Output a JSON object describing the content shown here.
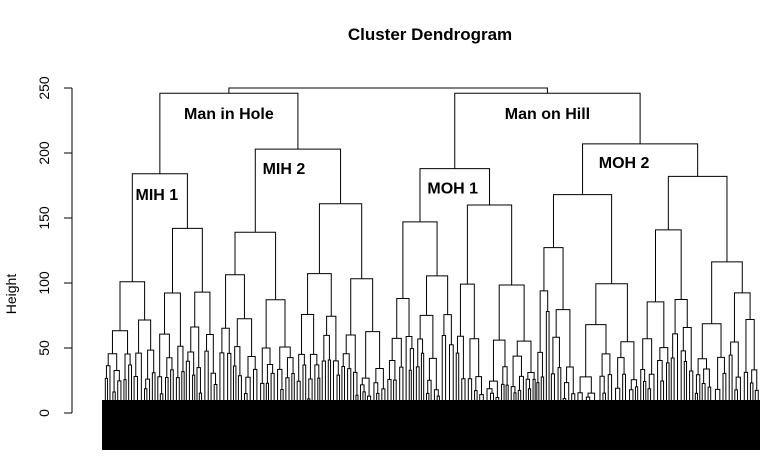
{
  "chart_data": {
    "type": "dendrogram",
    "title": "Cluster Dendrogram",
    "xlabel": "",
    "ylabel": "Height",
    "ylim": [
      0,
      260
    ],
    "yticks": [
      0,
      50,
      100,
      150,
      200,
      250
    ],
    "root": {
      "height": 250,
      "children": [
        "Man in Hole",
        "Man on Hill"
      ]
    },
    "clusters": [
      {
        "name": "Man in Hole",
        "height": 246,
        "children": [
          "MIH 1",
          "MIH 2"
        ]
      },
      {
        "name": "Man on Hill",
        "height": 246,
        "children": [
          "MOH 1",
          "MOH 2"
        ]
      },
      {
        "name": "MIH 1",
        "height": 184,
        "subclusters": [
          101,
          142
        ]
      },
      {
        "name": "MIH 2",
        "height": 203,
        "subclusters": [
          139,
          161
        ]
      },
      {
        "name": "MOH 1",
        "height": 188,
        "subclusters": [
          147,
          160
        ]
      },
      {
        "name": "MOH 2",
        "height": 207,
        "subclusters": [
          168,
          182
        ]
      }
    ]
  }
}
